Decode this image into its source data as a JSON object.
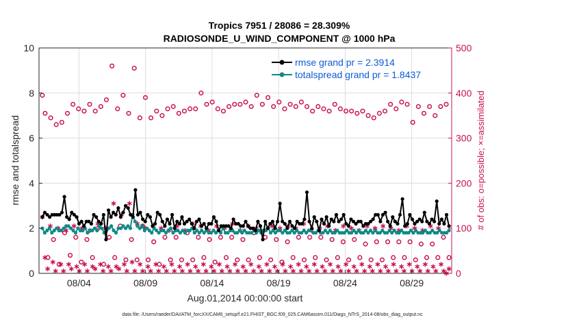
{
  "chart_data": {
    "type": "line",
    "title": "Tropics 7951 / 28086 = 28.309%",
    "subtitle": "RADIOSONDE_U_WIND_COMPONENT @ 1000 hPa",
    "xlabel": "Aug.01,2014 00:00:00 start",
    "ylabel_left": "rmse and totalspread",
    "ylabel_right": "# of obs: o=possible; ×=assimilated",
    "xlim": [
      1,
      32
    ],
    "ylim_left": [
      0,
      10
    ],
    "ylim_right": [
      0,
      500
    ],
    "x_ticks": [
      {
        "label": "08/04",
        "x": 4
      },
      {
        "label": "08/09",
        "x": 9
      },
      {
        "label": "08/14",
        "x": 14
      },
      {
        "label": "08/19",
        "x": 19
      },
      {
        "label": "08/24",
        "x": 24
      },
      {
        "label": "08/29",
        "x": 29
      }
    ],
    "y_ticks_left": [
      "0",
      "2",
      "4",
      "6",
      "8",
      "10"
    ],
    "y_ticks_right": [
      "0",
      "100",
      "200",
      "300",
      "400",
      "500"
    ],
    "grid": true,
    "series": [
      {
        "name": "rmse",
        "legend": "rmse grand pr = 2.3914",
        "color": "#000000",
        "axis": "left",
        "marker": "dot",
        "values": [
          2.5,
          2.7,
          2.6,
          2.5,
          2.6,
          2.6,
          2.6,
          2.6,
          2.7,
          3.4,
          2.5,
          2.4,
          2.7,
          2.6,
          2.5,
          2.2,
          2.3,
          2.1,
          2.3,
          2.3,
          2.2,
          2.6,
          2.5,
          2.3,
          2.2,
          2.6,
          1.5,
          2.8,
          2.5,
          2.7,
          2.6,
          2.9,
          2.5,
          2.7,
          3.0,
          2.9,
          2.6,
          2.5,
          3.7,
          2.6,
          2.7,
          2.4,
          2.3,
          2.6,
          2.5,
          2.1,
          2.2,
          2.7,
          2.6,
          2.3,
          2.1,
          2.4,
          2.2,
          2.6,
          2.0,
          2.3,
          2.2,
          2.5,
          2.2,
          2.3,
          2.4,
          2.2,
          2.0,
          2.3,
          2.4,
          2.1,
          2.2,
          2.0,
          2.2,
          2.2,
          2.5,
          2.3,
          1.9,
          2.1,
          2.1,
          2.1,
          2.1,
          2.0,
          2.4,
          2.2,
          2.2,
          2.1,
          2.1,
          2.3,
          2.1,
          2.0,
          2.0,
          1.9,
          2.3,
          2.1,
          1.5,
          2.3,
          2.0,
          2.2,
          2.3,
          2.0,
          2.3,
          3.1,
          2.3,
          2.2,
          2.0,
          2.3,
          2.1,
          2.0,
          2.3,
          2.2,
          2.2,
          2.4,
          3.6,
          2.3,
          2.0,
          2.5,
          2.3,
          1.9,
          2.4,
          2.2,
          2.5,
          2.1,
          2.4,
          2.3,
          2.6,
          2.3,
          2.4,
          2.6,
          2.2,
          2.1,
          2.4,
          2.3,
          2.2,
          2.3,
          2.3,
          2.1,
          2.2,
          2.2,
          2.3,
          2.4,
          2.6,
          2.6,
          2.3,
          2.6,
          2.7,
          2.3,
          2.1,
          2.5,
          2.3,
          2.2,
          2.6,
          3.3,
          2.1,
          2.2,
          2.6,
          2.4,
          2.2,
          2.3,
          2.4,
          2.3,
          2.7,
          2.3,
          2.2,
          2.4,
          2.3,
          3.2,
          2.2,
          2.4,
          2.2,
          2.6,
          2.1
        ]
      },
      {
        "name": "totalspread",
        "legend": "totalspread grand pr = 1.8437",
        "color": "#0f8a86",
        "axis": "left",
        "marker": "dot",
        "values": [
          2.0,
          1.8,
          1.9,
          2.0,
          1.8,
          1.9,
          2.0,
          1.9,
          1.9,
          2.0,
          2.1,
          2.1,
          2.0,
          1.9,
          1.8,
          2.0,
          1.9,
          1.9,
          2.0,
          1.8,
          1.9,
          1.9,
          2.0,
          1.9,
          2.1,
          2.0,
          1.8,
          1.9,
          2.0,
          2.1,
          1.9,
          1.8,
          2.0,
          2.0,
          2.1,
          2.0,
          2.1,
          2.0,
          2.6,
          2.3,
          2.1,
          2.0,
          2.1,
          1.9,
          2.0,
          1.9,
          1.8,
          2.0,
          1.9,
          1.8,
          1.9,
          1.9,
          1.8,
          1.9,
          2.0,
          1.8,
          1.9,
          1.9,
          1.8,
          1.9,
          1.8,
          1.9,
          1.9,
          2.0,
          1.8,
          1.9,
          1.8,
          1.9,
          1.8,
          1.9,
          1.8,
          1.8,
          1.9,
          1.8,
          1.9,
          1.8,
          2.0,
          1.8,
          1.8,
          1.9,
          1.9,
          1.8,
          1.8,
          1.9,
          1.8,
          1.9,
          1.8,
          1.8,
          1.8,
          1.9,
          1.8,
          1.9,
          1.8,
          1.9,
          1.9,
          2.0,
          1.8,
          1.9,
          1.8,
          1.9,
          1.9,
          1.8,
          1.9,
          1.8,
          1.8,
          1.9,
          1.8,
          1.9,
          1.8,
          1.8,
          1.9,
          1.8,
          1.9,
          1.9,
          1.8,
          1.8,
          1.9,
          1.8,
          1.8,
          1.9,
          1.8,
          1.9,
          1.8,
          1.8,
          1.9,
          1.8,
          1.8,
          1.8,
          1.9,
          1.8,
          1.8,
          1.9,
          1.8,
          1.9,
          1.8,
          1.8,
          1.9,
          1.8,
          1.9,
          1.8,
          1.9,
          1.8,
          1.8,
          1.9,
          1.8,
          1.8,
          1.9,
          1.8,
          1.9,
          1.8,
          1.8,
          1.9,
          1.8,
          1.8,
          1.8,
          1.9,
          1.8,
          1.9,
          1.8,
          1.8,
          1.8,
          1.9,
          1.8,
          1.8,
          1.9,
          1.8,
          1.8,
          1.9,
          1.8,
          1.8,
          1.8,
          1.9
        ]
      },
      {
        "name": "possible",
        "color": "#c8104f",
        "axis": "right",
        "marker": "circle",
        "values": [
          395,
          355,
          35,
          345,
          75,
          330,
          20,
          335,
          90,
          355,
          40,
          375,
          80,
          365,
          25,
          360,
          75,
          375,
          35,
          360,
          100,
          370,
          20,
          385,
          80,
          460,
          35,
          365,
          105,
          395,
          30,
          355,
          75,
          455,
          30,
          345,
          105,
          390,
          30,
          345,
          70,
          360,
          20,
          350,
          80,
          365,
          30,
          370,
          80,
          355,
          30,
          360,
          90,
          365,
          30,
          365,
          80,
          400,
          35,
          375,
          75,
          380,
          25,
          365,
          80,
          360,
          35,
          370,
          80,
          375,
          30,
          375,
          75,
          380,
          30,
          370,
          90,
          395,
          35,
          375,
          80,
          390,
          30,
          370,
          75,
          380,
          25,
          365,
          70,
          375,
          35,
          370,
          80,
          380,
          30,
          370,
          80,
          360,
          35,
          370,
          80,
          365,
          30,
          360,
          75,
          375,
          35,
          365,
          70,
          360,
          30,
          360,
          75,
          355,
          35,
          360,
          65,
          350,
          30,
          345,
          70,
          355,
          30,
          360,
          70,
          375,
          35,
          365,
          70,
          380,
          35,
          375,
          70,
          335,
          30,
          370,
          65,
          355,
          35,
          370,
          65,
          350,
          35,
          370,
          80,
          375,
          35
        ]
      },
      {
        "name": "assimilated",
        "color": "#c8104f",
        "axis": "right",
        "marker": "asterisk",
        "values": [
          125,
          35,
          10,
          105,
          25,
          5,
          100,
          20,
          5,
          95,
          20,
          10,
          105,
          15,
          5,
          100,
          20,
          5,
          95,
          15,
          10,
          110,
          20,
          5,
          100,
          15,
          5,
          155,
          15,
          10,
          130,
          20,
          5,
          155,
          25,
          5,
          110,
          20,
          5,
          100,
          15,
          5,
          105,
          20,
          5,
          100,
          15,
          5,
          95,
          20,
          5,
          105,
          15,
          5,
          95,
          20,
          5,
          110,
          15,
          5,
          105,
          20,
          5,
          95,
          15,
          5,
          105,
          20,
          5,
          100,
          15,
          5,
          110,
          20,
          5,
          95,
          15,
          5,
          105,
          20,
          5,
          100,
          15,
          5,
          95,
          20,
          5,
          105,
          15,
          5,
          100,
          20,
          5,
          105,
          15,
          5,
          100,
          20,
          5,
          110,
          15,
          5,
          95,
          20,
          5,
          100,
          15,
          5,
          105,
          20,
          5,
          95,
          15,
          5,
          105,
          20,
          5,
          100,
          15,
          5,
          95,
          20,
          5,
          105,
          15,
          5,
          100,
          20,
          5,
          105,
          15,
          5,
          100,
          20,
          5,
          95,
          15,
          5,
          105,
          20,
          5,
          100,
          15,
          5,
          95,
          20,
          5,
          105,
          15,
          5,
          100,
          20,
          5,
          0,
          10
        ]
      }
    ]
  },
  "footer": "data file: /Users/raeder/DAI/ATM_forcXX/CAM6_setup/f.e21.FHIST_BGC.f09_025.CAM6assim.011/Diags_NTrS_2014-08/obs_diag_output.nc"
}
